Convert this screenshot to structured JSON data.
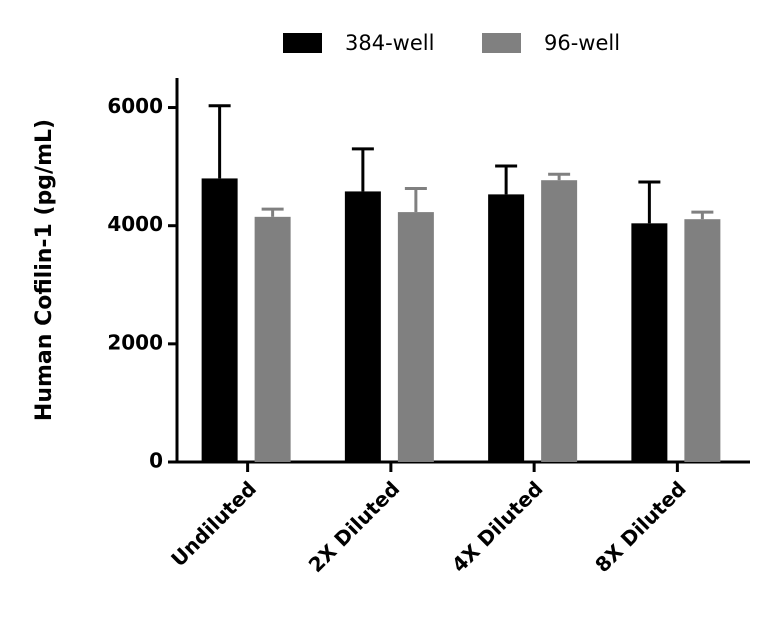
{
  "chart_data": {
    "type": "bar",
    "y_label": "Human Cofilin-1 (pg/mL)",
    "categories": [
      "Undiluted",
      "2X Diluted",
      "4X Diluted",
      "8X Diluted"
    ],
    "series": [
      {
        "name": "384-well",
        "color": "#000000",
        "values": [
          4800,
          4580,
          4530,
          4040
        ],
        "errors": [
          1230,
          720,
          480,
          700
        ]
      },
      {
        "name": "96-well",
        "color": "#808080",
        "values": [
          4150,
          4230,
          4770,
          4110
        ],
        "errors": [
          130,
          400,
          100,
          120
        ]
      }
    ],
    "ylim": [
      0,
      6500
    ],
    "yticks": [
      0,
      2000,
      4000,
      6000
    ],
    "legend": "top"
  }
}
